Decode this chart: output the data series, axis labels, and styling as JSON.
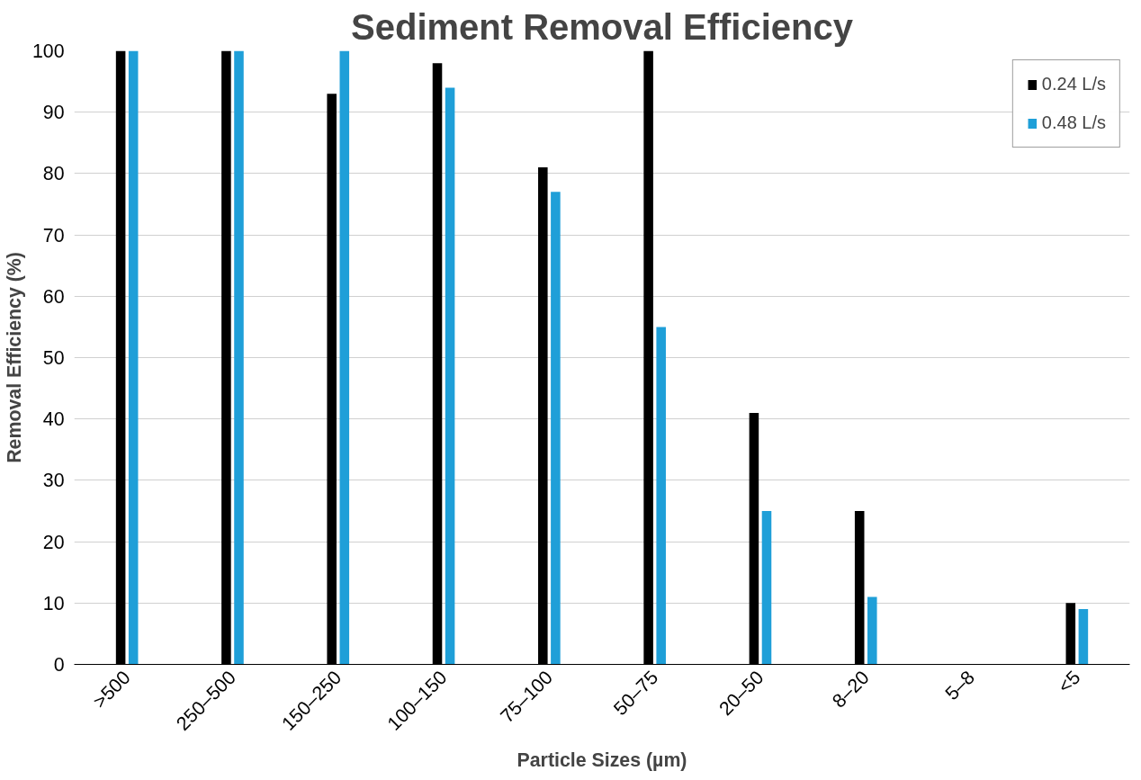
{
  "chart_data": {
    "type": "bar",
    "title": "Sediment Removal Efficiency",
    "xlabel": "Particle Sizes (µm)",
    "ylabel": "Removal Efficiency (%)",
    "categories": [
      ">500",
      "250–500",
      "150–250",
      "100–150",
      "75–100",
      "50–75",
      "20–50",
      "8–20",
      "5–8",
      "<5"
    ],
    "series": [
      {
        "name": "0.24 L/s",
        "color": "#000000",
        "values": [
          100,
          100,
          93,
          98,
          81,
          100,
          41,
          25,
          0,
          10
        ]
      },
      {
        "name": "0.48 L/s",
        "color": "#1f9fd8",
        "values": [
          100,
          100,
          100,
          94,
          77,
          55,
          25,
          11,
          0,
          9
        ]
      }
    ],
    "ylim": [
      0,
      100
    ],
    "yticks": [
      0,
      10,
      20,
      30,
      40,
      50,
      60,
      70,
      80,
      90,
      100
    ],
    "grid": "y",
    "legend": "top right"
  }
}
